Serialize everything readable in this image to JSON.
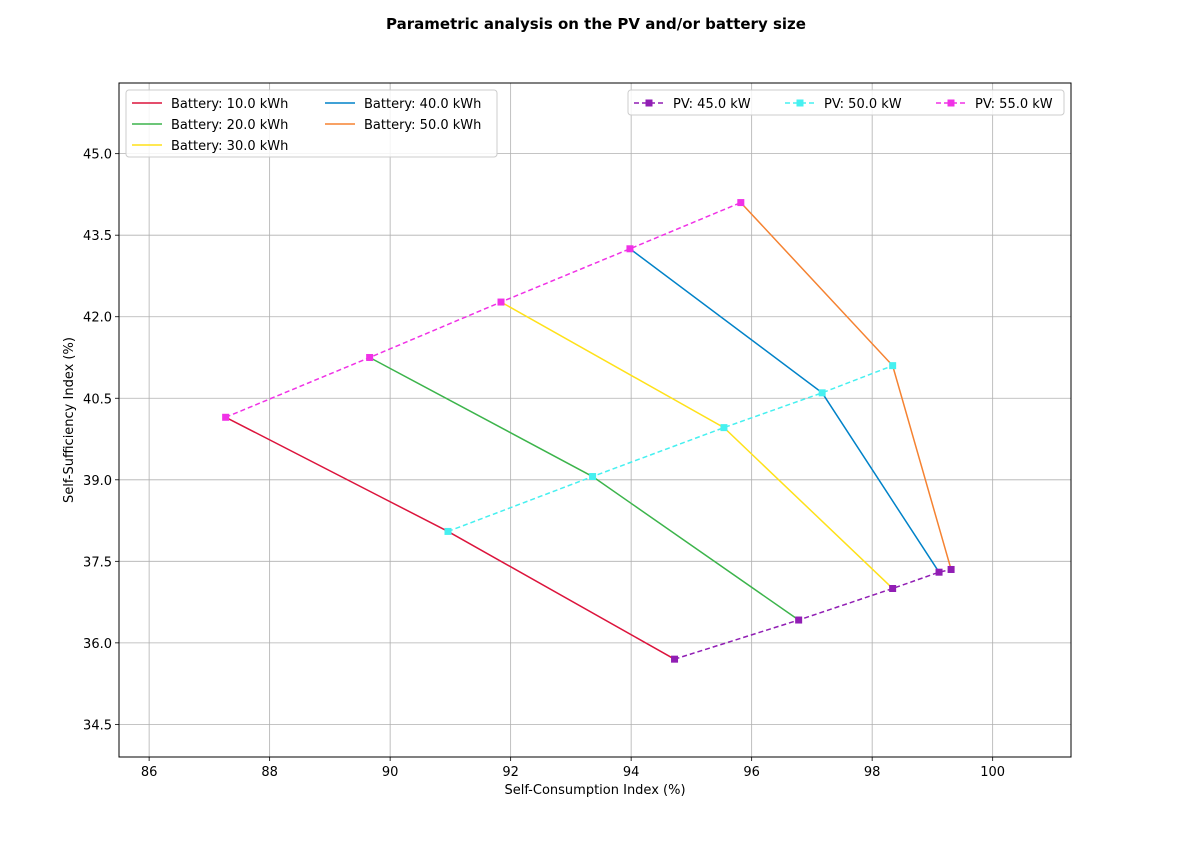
{
  "chart_data": {
    "type": "line",
    "title": "Parametric analysis on the PV and/or battery size",
    "xlabel": "Self-Consumption Index (%)",
    "ylabel": "Self-Sufficiency Index (%)",
    "xlim": [
      85.5,
      101.3
    ],
    "ylim": [
      33.9,
      46.3
    ],
    "xticks": [
      86,
      88,
      90,
      92,
      94,
      96,
      98,
      100
    ],
    "yticks": [
      34.5,
      36.0,
      37.5,
      39.0,
      40.5,
      42.0,
      43.5,
      45.0
    ],
    "xtick_labels": [
      "86",
      "88",
      "90",
      "92",
      "94",
      "96",
      "98",
      "100"
    ],
    "ytick_labels": [
      "34.5",
      "36.0",
      "37.5",
      "39.0",
      "40.5",
      "42.0",
      "43.5",
      "45.0"
    ],
    "grid": true,
    "battery_series": [
      {
        "name": "Battery: 10.0 kWh",
        "color": "#dc143c",
        "x": [
          94.72,
          90.96,
          87.27
        ],
        "y": [
          35.7,
          38.05,
          40.15
        ]
      },
      {
        "name": "Battery: 20.0 kWh",
        "color": "#3cb44b",
        "x": [
          96.78,
          93.36,
          89.66
        ],
        "y": [
          36.42,
          39.06,
          41.25
        ]
      },
      {
        "name": "Battery: 30.0 kWh",
        "color": "#ffe119",
        "x": [
          98.34,
          95.54,
          91.84
        ],
        "y": [
          37.0,
          39.96,
          42.27
        ]
      },
      {
        "name": "Battery: 40.0 kWh",
        "color": "#0082c8",
        "x": [
          99.11,
          97.17,
          93.98
        ],
        "y": [
          37.3,
          40.6,
          43.25
        ]
      },
      {
        "name": "Battery: 50.0 kWh",
        "color": "#f58231",
        "x": [
          99.31,
          98.34,
          95.82
        ],
        "y": [
          37.35,
          41.1,
          44.1
        ]
      }
    ],
    "pv_series": [
      {
        "name": "PV: 45.0 kW",
        "color": "#911eb4",
        "x": [
          94.72,
          96.78,
          98.34,
          99.11,
          99.31
        ],
        "y": [
          35.7,
          36.42,
          37.0,
          37.3,
          37.35
        ]
      },
      {
        "name": "PV: 50.0 kW",
        "color": "#46f0f0",
        "x": [
          90.96,
          93.36,
          95.54,
          97.17,
          98.34
        ],
        "y": [
          38.05,
          39.06,
          39.96,
          40.6,
          41.1
        ]
      },
      {
        "name": "PV: 55.0 kW",
        "color": "#f032e6",
        "x": [
          87.27,
          89.66,
          91.84,
          93.98,
          95.82
        ],
        "y": [
          40.15,
          41.25,
          42.27,
          43.25,
          44.1
        ]
      }
    ],
    "legends": [
      {
        "placement": "upper left",
        "columns": 2,
        "entries": [
          "Battery: 10.0 kWh",
          "Battery: 20.0 kWh",
          "Battery: 30.0 kWh",
          "Battery: 40.0 kWh",
          "Battery: 50.0 kWh"
        ]
      },
      {
        "placement": "upper right",
        "columns": 3,
        "entries": [
          "PV: 45.0 kW",
          "PV: 50.0 kW",
          "PV: 55.0 kW"
        ]
      }
    ]
  }
}
